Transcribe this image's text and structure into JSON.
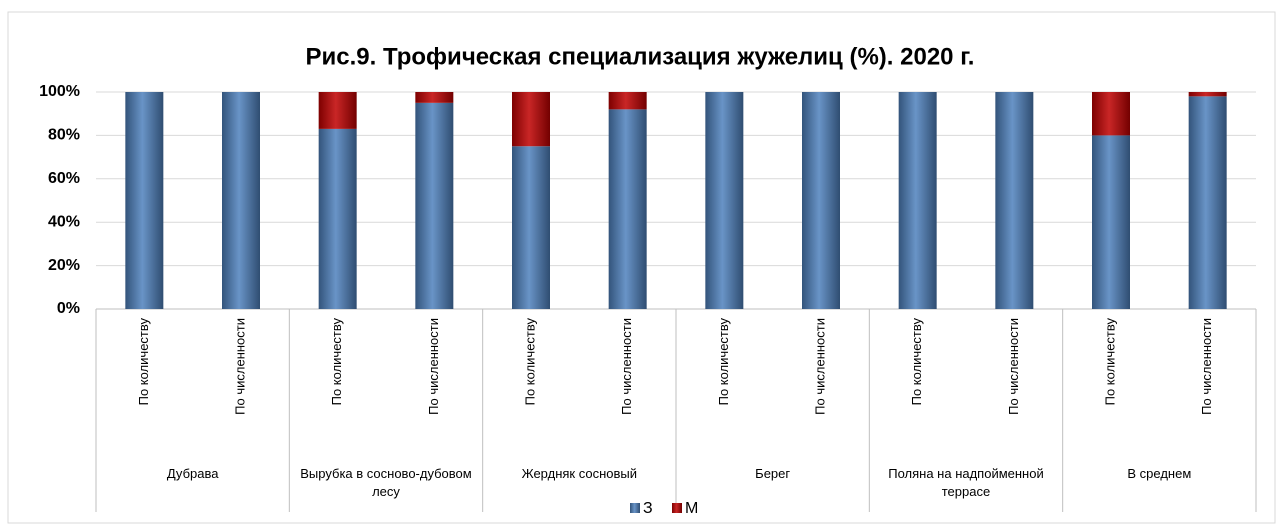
{
  "chart_data": {
    "type": "bar",
    "stacked": true,
    "title": "Рис.9. Трофическая специализация жужелиц (%). 2020 г.",
    "categories": [
      "По количеству",
      "По численности",
      "По количеству",
      "По численности",
      "По количеству",
      "По численности",
      "По количеству",
      "По численности",
      "По количеству",
      "По численности",
      "По количеству",
      "По численности"
    ],
    "groups": [
      "Дубрава",
      "Вырубка в сосново-дубовом лесу",
      "Жердняк сосновый",
      "Берег",
      "Поляна на надпойменной террасе",
      "В среднем"
    ],
    "series": [
      {
        "name": "З",
        "color": "#4f81bd",
        "values": [
          100,
          100,
          83,
          95,
          75,
          92,
          100,
          100,
          100,
          100,
          80,
          98
        ]
      },
      {
        "name": "М",
        "color": "#c00000",
        "values": [
          0,
          0,
          17,
          5,
          25,
          8,
          0,
          0,
          0,
          0,
          20,
          2
        ]
      }
    ],
    "ylim": [
      0,
      100
    ],
    "yticks": [
      {
        "value": 0,
        "label": "0%"
      },
      {
        "value": 20,
        "label": "20%"
      },
      {
        "value": 40,
        "label": "40%"
      },
      {
        "value": 60,
        "label": "60%"
      },
      {
        "value": 80,
        "label": "80%"
      },
      {
        "value": 100,
        "label": "100%"
      }
    ],
    "grid": true,
    "legend": "bottom"
  }
}
